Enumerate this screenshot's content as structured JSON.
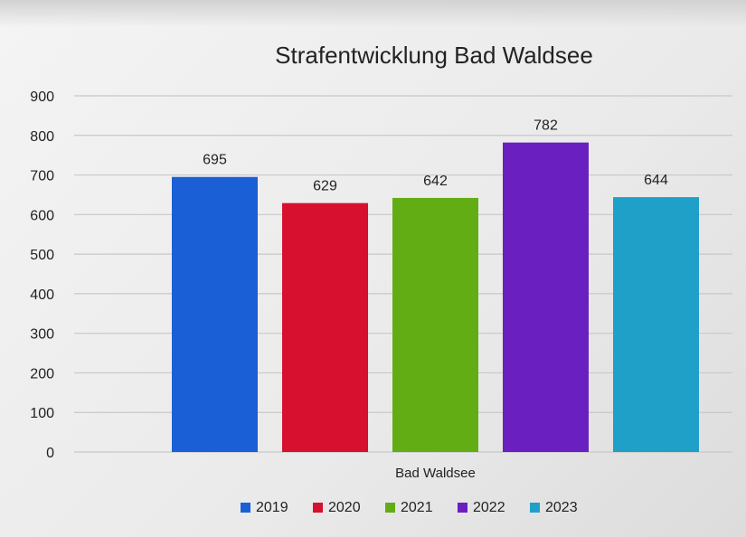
{
  "chart_data": {
    "type": "bar",
    "title": "Strafentwicklung Bad Waldsee",
    "categories": [
      "Bad Waldsee"
    ],
    "series": [
      {
        "name": "2019",
        "values": [
          695
        ],
        "color": "#1a5fd6"
      },
      {
        "name": "2020",
        "values": [
          629
        ],
        "color": "#d6102e"
      },
      {
        "name": "2021",
        "values": [
          642
        ],
        "color": "#62ad14"
      },
      {
        "name": "2022",
        "values": [
          782
        ],
        "color": "#6a1fc0"
      },
      {
        "name": "2023",
        "values": [
          644
        ],
        "color": "#1ea0c8"
      }
    ],
    "ylim": [
      0,
      900
    ],
    "yticks": [
      0,
      100,
      200,
      300,
      400,
      500,
      600,
      700,
      800,
      900
    ],
    "xlabel": "",
    "ylabel": "",
    "grid": true,
    "legend_position": "bottom",
    "data_labels": true
  }
}
